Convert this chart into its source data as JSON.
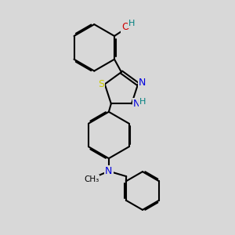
{
  "bg_color": "#d8d8d8",
  "C_color": "#000000",
  "N_color": "#0000dd",
  "O_color": "#cc0000",
  "S_color": "#cccc00",
  "H_color": "#008080",
  "bond_color": "#000000",
  "bond_lw": 1.5,
  "dbo": 0.06,
  "fs": 9.0,
  "xlim": [
    0,
    10
  ],
  "ylim": [
    0,
    10
  ]
}
